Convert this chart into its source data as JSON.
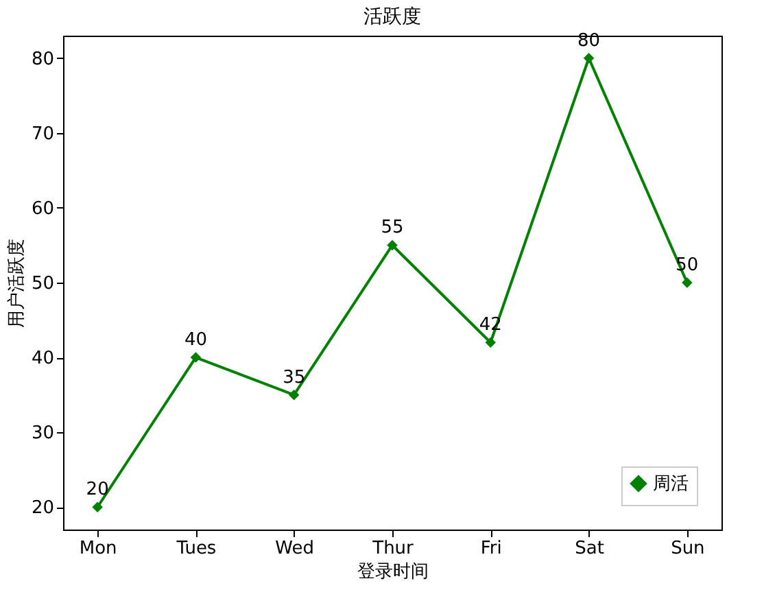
{
  "chart_data": {
    "type": "line",
    "title": "活跃度",
    "xlabel": "登录时间",
    "ylabel": "用户活跃度",
    "categories": [
      "Mon",
      "Tues",
      "Wed",
      "Thur",
      "Fri",
      "Sat",
      "Sun"
    ],
    "series": [
      {
        "name": "周活",
        "color": "#008000",
        "values": [
          20,
          40,
          35,
          55,
          42,
          80,
          50
        ]
      }
    ],
    "ylim": [
      17,
      83
    ],
    "yticks": [
      20,
      30,
      40,
      50,
      60,
      70,
      80
    ],
    "marker": "diamond",
    "line_style": "solid",
    "data_labels": true,
    "legend": "bottom right",
    "grid": false
  }
}
